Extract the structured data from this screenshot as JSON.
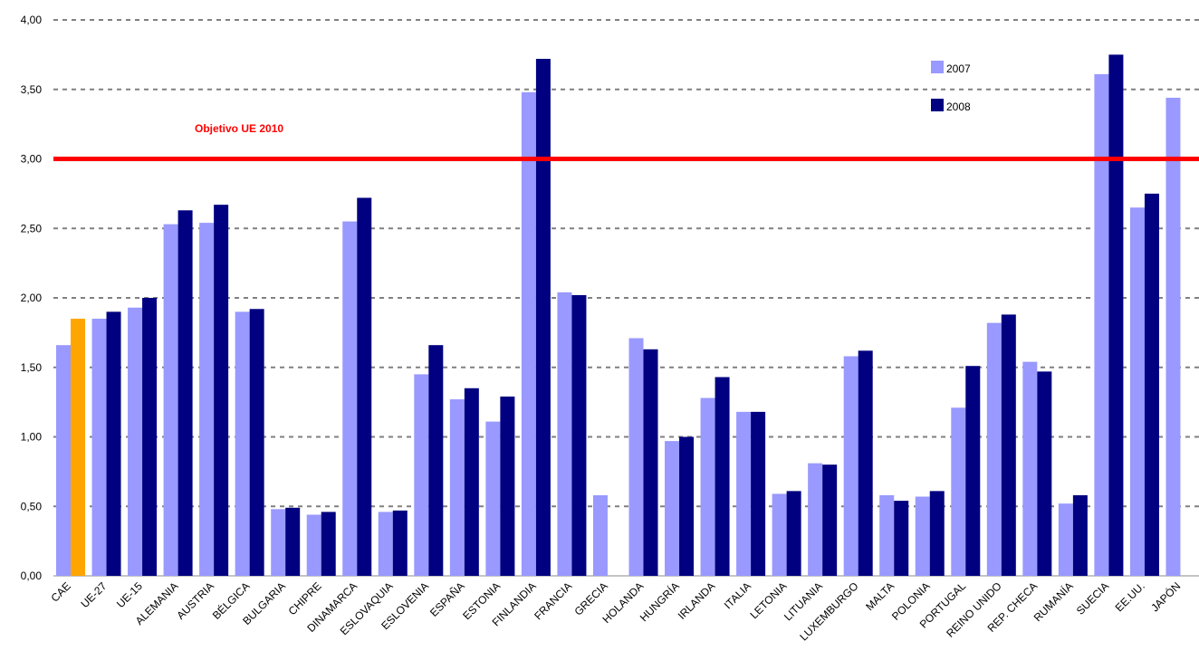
{
  "chart_data": {
    "type": "bar",
    "categories": [
      "CAE",
      "UE-27",
      "UE-15",
      "ALEMANIA",
      "AUSTRIA",
      "BÉLGICA",
      "BULGARIA",
      "CHIPRE",
      "DINAMARCA",
      "ESLOVAQUIA",
      "ESLOVENIA",
      "ESPAÑA",
      "ESTONIA",
      "FINLANDIA",
      "FRANCIA",
      "GRECIA",
      "HOLANDA",
      "HUNGRÍA",
      "IRLANDA",
      "ITALIA",
      "LETONIA",
      "LITUANIA",
      "LUXEMBURGO",
      "MALTA",
      "POLONIA",
      "PORTUGAL",
      "REINO UNIDO",
      "REP. CHECA",
      "RUMANÍA",
      "SUECIA",
      "EE.UU.",
      "JAPÓN"
    ],
    "series": [
      {
        "name": "2007",
        "color": "#9999ff",
        "values": [
          1.66,
          1.85,
          1.93,
          2.53,
          2.54,
          1.9,
          0.48,
          0.44,
          2.55,
          0.46,
          1.45,
          1.27,
          1.11,
          3.48,
          2.04,
          0.58,
          1.71,
          0.97,
          1.28,
          1.18,
          0.59,
          0.81,
          1.58,
          0.58,
          0.57,
          1.21,
          1.82,
          1.54,
          0.52,
          3.61,
          2.65,
          3.44
        ]
      },
      {
        "name": "2008",
        "color": "#000080",
        "colors": [
          "#ffa500",
          "#000080",
          "#000080",
          "#000080",
          "#000080",
          "#000080",
          "#000080",
          "#000080",
          "#000080",
          "#000080",
          "#000080",
          "#000080",
          "#000080",
          "#000080",
          "#000080",
          "#000080",
          "#000080",
          "#000080",
          "#000080",
          "#000080",
          "#000080",
          "#000080",
          "#000080",
          "#000080",
          "#000080",
          "#000080",
          "#000080",
          "#000080",
          "#000080",
          "#000080",
          "#000080",
          "#000080"
        ],
        "values": [
          1.85,
          1.9,
          2.0,
          2.63,
          2.67,
          1.92,
          0.49,
          0.46,
          2.72,
          0.47,
          1.66,
          1.35,
          1.29,
          3.72,
          2.02,
          null,
          1.63,
          1.0,
          1.43,
          1.18,
          0.61,
          0.8,
          1.62,
          0.54,
          0.61,
          1.51,
          1.88,
          1.47,
          0.58,
          3.75,
          2.75,
          null
        ]
      }
    ],
    "ylim": [
      0,
      4
    ],
    "yticks": [
      {
        "value": 0,
        "label": "0,00"
      },
      {
        "value": 0.5,
        "label": "0,50"
      },
      {
        "value": 1,
        "label": "1,00"
      },
      {
        "value": 1.5,
        "label": "1,50"
      },
      {
        "value": 2,
        "label": "2,00"
      },
      {
        "value": 2.5,
        "label": "2,50"
      },
      {
        "value": 3,
        "label": "3,00"
      },
      {
        "value": 3.5,
        "label": "3,50"
      },
      {
        "value": 4,
        "label": "4,00"
      }
    ],
    "grid": true,
    "legend": "top-right",
    "reference_line": {
      "value": 3,
      "label": "Objetivo UE 2010",
      "color": "#ff0000"
    }
  }
}
